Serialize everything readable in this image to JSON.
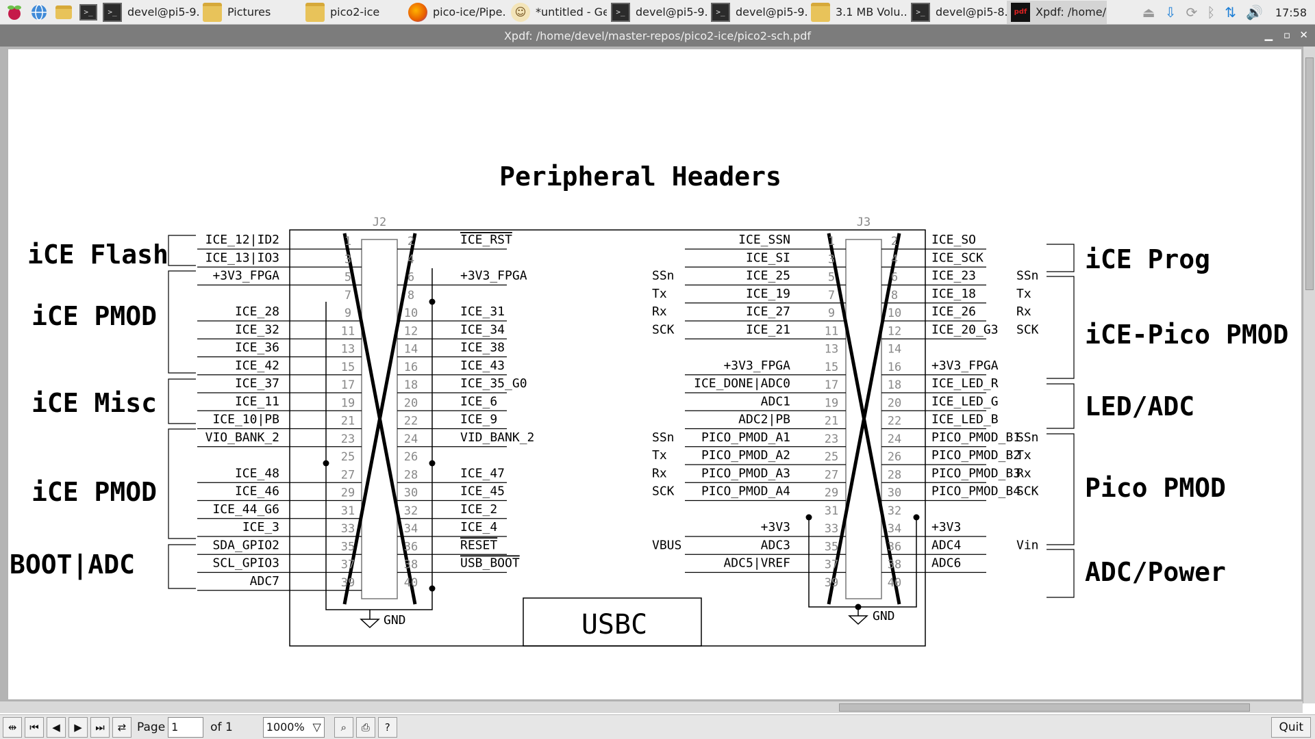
{
  "taskbar": {
    "buttons": [
      {
        "label": "devel@pi5-9..",
        "icon": "terminal-icon"
      },
      {
        "label": "Pictures",
        "icon": "folder-icon"
      },
      {
        "label": "pico2-ice",
        "icon": "folder-icon"
      },
      {
        "label": "pico-ice/Pipe..",
        "icon": "firefox-icon"
      },
      {
        "label": "*untitled - Ge..",
        "icon": "geany-icon"
      },
      {
        "label": "devel@pi5-9..",
        "icon": "terminal-icon"
      },
      {
        "label": "devel@pi5-9..",
        "icon": "terminal-icon"
      },
      {
        "label": "3.1 MB Volu..",
        "icon": "folder-icon"
      },
      {
        "label": "devel@pi5-8..",
        "icon": "terminal-icon"
      },
      {
        "label": "Xpdf: /home/..",
        "icon": "pdf-icon"
      }
    ],
    "clock": "17:58"
  },
  "window": {
    "title": "Xpdf: /home/devel/master-repos/pico2-ice/pico2-sch.pdf"
  },
  "toolbar": {
    "page_label": "Page",
    "page_value": "1",
    "of_label": "of 1",
    "zoom": "1000%",
    "quit": "Quit"
  },
  "schematic": {
    "title": "Peripheral Headers",
    "j2": "J2",
    "j3": "J3",
    "usbc": "USBC",
    "gnd": "GND",
    "sections_left": [
      "iCE Flash",
      "iCE PMOD",
      "iCE Misc",
      "iCE PMOD",
      "BOOT|ADC"
    ],
    "sections_right": [
      "iCE Prog",
      "iCE-Pico PMOD",
      "LED/ADC",
      "Pico PMOD",
      "ADC/Power"
    ],
    "j2_left": [
      "ICE_12|ID2",
      "ICE_13|IO3",
      "+3V3_FPGA",
      "",
      "ICE_28",
      "ICE_32",
      "ICE_36",
      "ICE_42",
      "ICE_37",
      "ICE_11",
      "ICE_10|PB",
      "VIO_BANK_2",
      "",
      "ICE_48",
      "ICE_46",
      "ICE_44_G6",
      "ICE_3",
      "SDA_GPIO2",
      "SCL_GPIO3",
      "ADC7"
    ],
    "j2_right": [
      "ICE_RST",
      "",
      "+3V3_FPGA",
      "",
      "ICE_31",
      "ICE_34",
      "ICE_38",
      "ICE_43",
      "ICE_35_G0",
      "ICE_6",
      "ICE_9",
      "VID_BANK_2",
      "",
      "ICE_47",
      "ICE_45",
      "ICE_2",
      "ICE_4",
      "RESET",
      "USB_BOOT",
      ""
    ],
    "j3_left": [
      "ICE_SSN",
      "ICE_SI",
      "ICE_25",
      "ICE_19",
      "ICE_27",
      "ICE_21",
      "",
      "+3V3_FPGA",
      "ICE_DONE|ADC0",
      "ADC1",
      "ADC2|PB",
      "PICO_PMOD_A1",
      "PICO_PMOD_A2",
      "PICO_PMOD_A3",
      "PICO_PMOD_A4",
      "",
      "+3V3",
      "ADC3",
      "ADC5|VREF",
      ""
    ],
    "j3_right": [
      "ICE_SO",
      "ICE_SCK",
      "ICE_23",
      "ICE_18",
      "ICE_26",
      "ICE_20_G3",
      "",
      "+3V3_FPGA",
      "ICE_LED_R",
      "ICE_LED_G",
      "ICE_LED_B",
      "PICO_PMOD_B1",
      "PICO_PMOD_B2",
      "PICO_PMOD_B3",
      "PICO_PMOD_B4",
      "",
      "+3V3",
      "ADC4",
      "ADC6",
      ""
    ],
    "j3_left_func": [
      "",
      "",
      "SSn",
      "Tx",
      "Rx",
      "SCK",
      "",
      "",
      "",
      "",
      "",
      "SSn",
      "Tx",
      "Rx",
      "SCK",
      "",
      "",
      "VBUS",
      "",
      ""
    ],
    "j3_right_func": [
      "",
      "",
      "SSn",
      "Tx",
      "Rx",
      "SCK",
      "",
      "",
      "",
      "",
      "",
      "SSn",
      "Tx",
      "Rx",
      "SCK",
      "",
      "",
      "Vin",
      "",
      ""
    ],
    "pins_odd": [
      "1",
      "3",
      "5",
      "7",
      "9",
      "11",
      "13",
      "15",
      "17",
      "19",
      "21",
      "23",
      "25",
      "27",
      "29",
      "31",
      "33",
      "35",
      "37",
      "39"
    ],
    "pins_even": [
      "2",
      "4",
      "6",
      "8",
      "10",
      "12",
      "14",
      "16",
      "18",
      "20",
      "22",
      "24",
      "26",
      "28",
      "30",
      "32",
      "34",
      "36",
      "38",
      "40"
    ]
  }
}
